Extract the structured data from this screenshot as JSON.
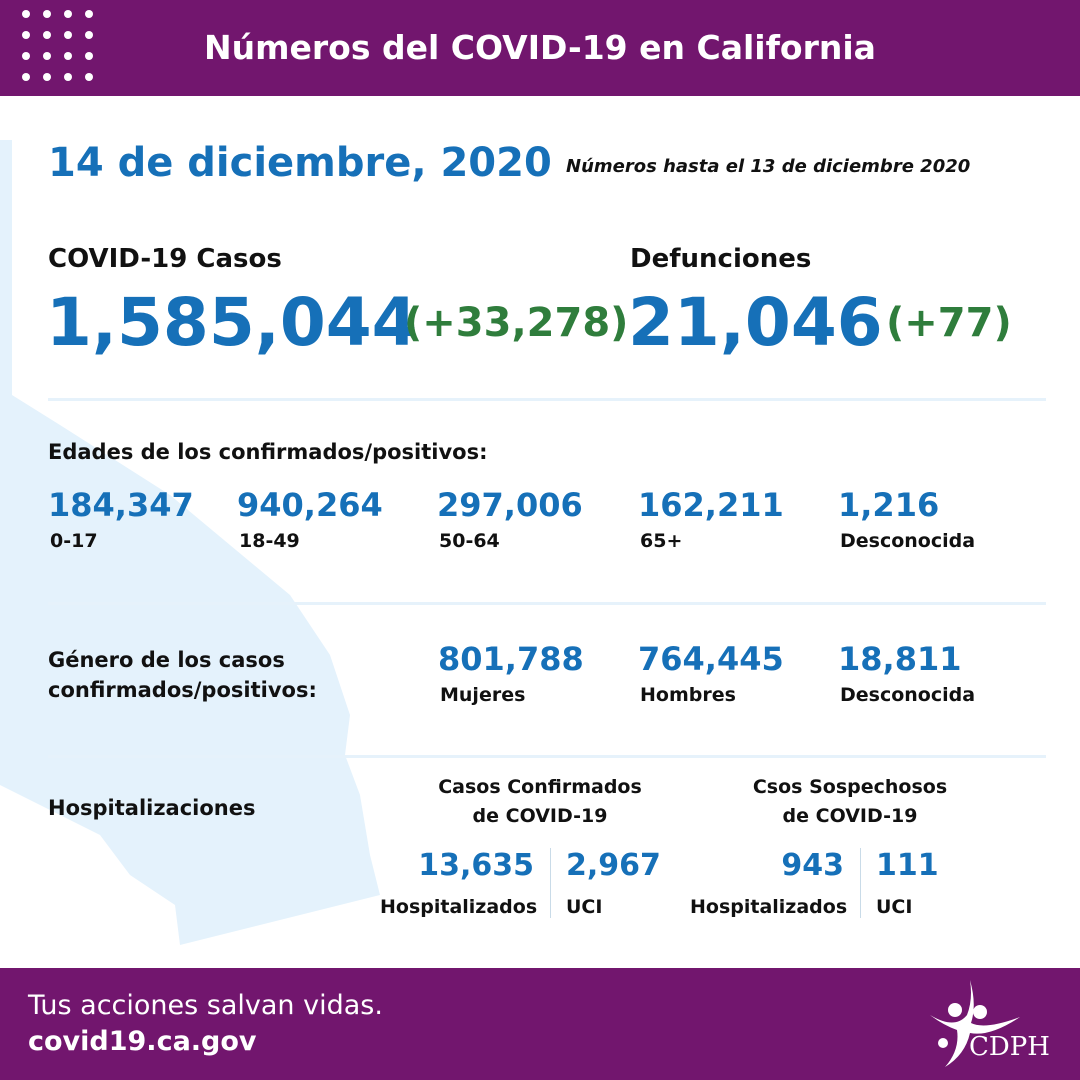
{
  "header": {
    "title": "Números del COVID-19 en California"
  },
  "date": "14 de diciembre, 2020",
  "as_of": "Números hasta el 13 de diciembre 2020",
  "cases": {
    "label": "COVID-19 Casos",
    "value": "1,585,044",
    "change": "(+33,278)"
  },
  "deaths": {
    "label": "Defunciones",
    "value": "21,046",
    "change": "(+77)"
  },
  "ages": {
    "label": "Edades de los confirmados/positivos:",
    "items": [
      {
        "value": "184,347",
        "label": "0-17"
      },
      {
        "value": "940,264",
        "label": "18-49"
      },
      {
        "value": "297,006",
        "label": "50-64"
      },
      {
        "value": "162,211",
        "label": "65+"
      },
      {
        "value": "1,216",
        "label": "Desconocida"
      }
    ]
  },
  "gender": {
    "label_line1": "Género de los casos",
    "label_line2": "confirmados/positivos:",
    "items": [
      {
        "value": "801,788",
        "label": "Mujeres"
      },
      {
        "value": "764,445",
        "label": "Hombres"
      },
      {
        "value": "18,811",
        "label": "Desconocida"
      }
    ]
  },
  "hosp": {
    "label": "Hospitalizaciones",
    "confirmed": {
      "title1": "Casos Confirmados",
      "title2": "de COVID-19",
      "hosp_value": "13,635",
      "hosp_label": "Hospitalizados",
      "icu_value": "2,967",
      "icu_label": "UCI"
    },
    "suspected": {
      "title1": "Csos Sospechosos",
      "title2": "de COVID-19",
      "hosp_value": "943",
      "hosp_label": "Hospitalizados",
      "icu_value": "111",
      "icu_label": "UCI"
    }
  },
  "footer": {
    "tagline": "Tus acciones salvan vidas.",
    "url": "covid19.ca.gov",
    "logo_text": "CDPH"
  },
  "colors": {
    "purple": "#72166e",
    "blue": "#1670b8",
    "green": "#2f7d3c",
    "map": "#e4f2fc"
  }
}
